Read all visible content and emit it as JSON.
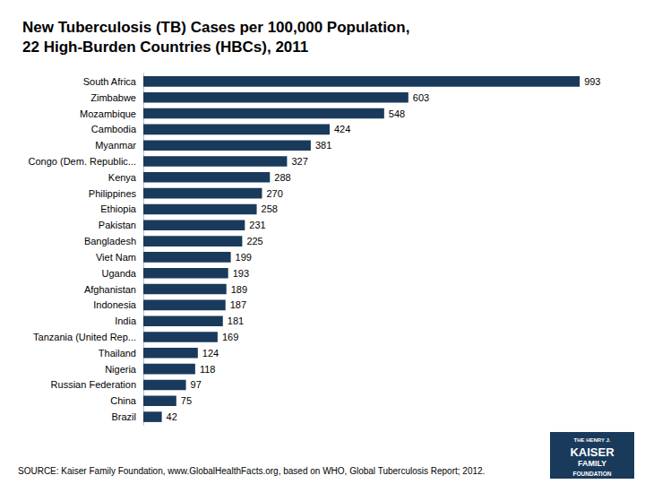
{
  "chart_data": {
    "type": "bar",
    "orientation": "horizontal",
    "title": "New Tuberculosis (TB) Cases per 100,000 Population,\n22 High-Burden Countries (HBCs), 2011",
    "categories": [
      "South Africa",
      "Zimbabwe",
      "Mozambique",
      "Cambodia",
      "Myanmar",
      "Congo (Dem. Republic...",
      "Kenya",
      "Philippines",
      "Ethiopia",
      "Pakistan",
      "Bangladesh",
      "Viet Nam",
      "Uganda",
      "Afghanistan",
      "Indonesia",
      "India",
      "Tanzania (United Rep...",
      "Thailand",
      "Nigeria",
      "Russian Federation",
      "China",
      "Brazil"
    ],
    "values": [
      993,
      603,
      548,
      424,
      381,
      327,
      288,
      270,
      258,
      231,
      225,
      199,
      193,
      189,
      187,
      181,
      169,
      124,
      118,
      97,
      75,
      42
    ],
    "color": "#1a3a5c",
    "xlim": [
      0,
      1060
    ],
    "data_labels": true,
    "tick_labels": "y",
    "grid": false,
    "annotations": [
      "SOURCE: Kaiser Family Foundation, www.GlobalHealthFacts.org, based on WHO, Global Tuberculosis Report; 2012.",
      "THE HENRY J.",
      "KAISER",
      "FAMILY",
      "FOUNDATION"
    ]
  }
}
